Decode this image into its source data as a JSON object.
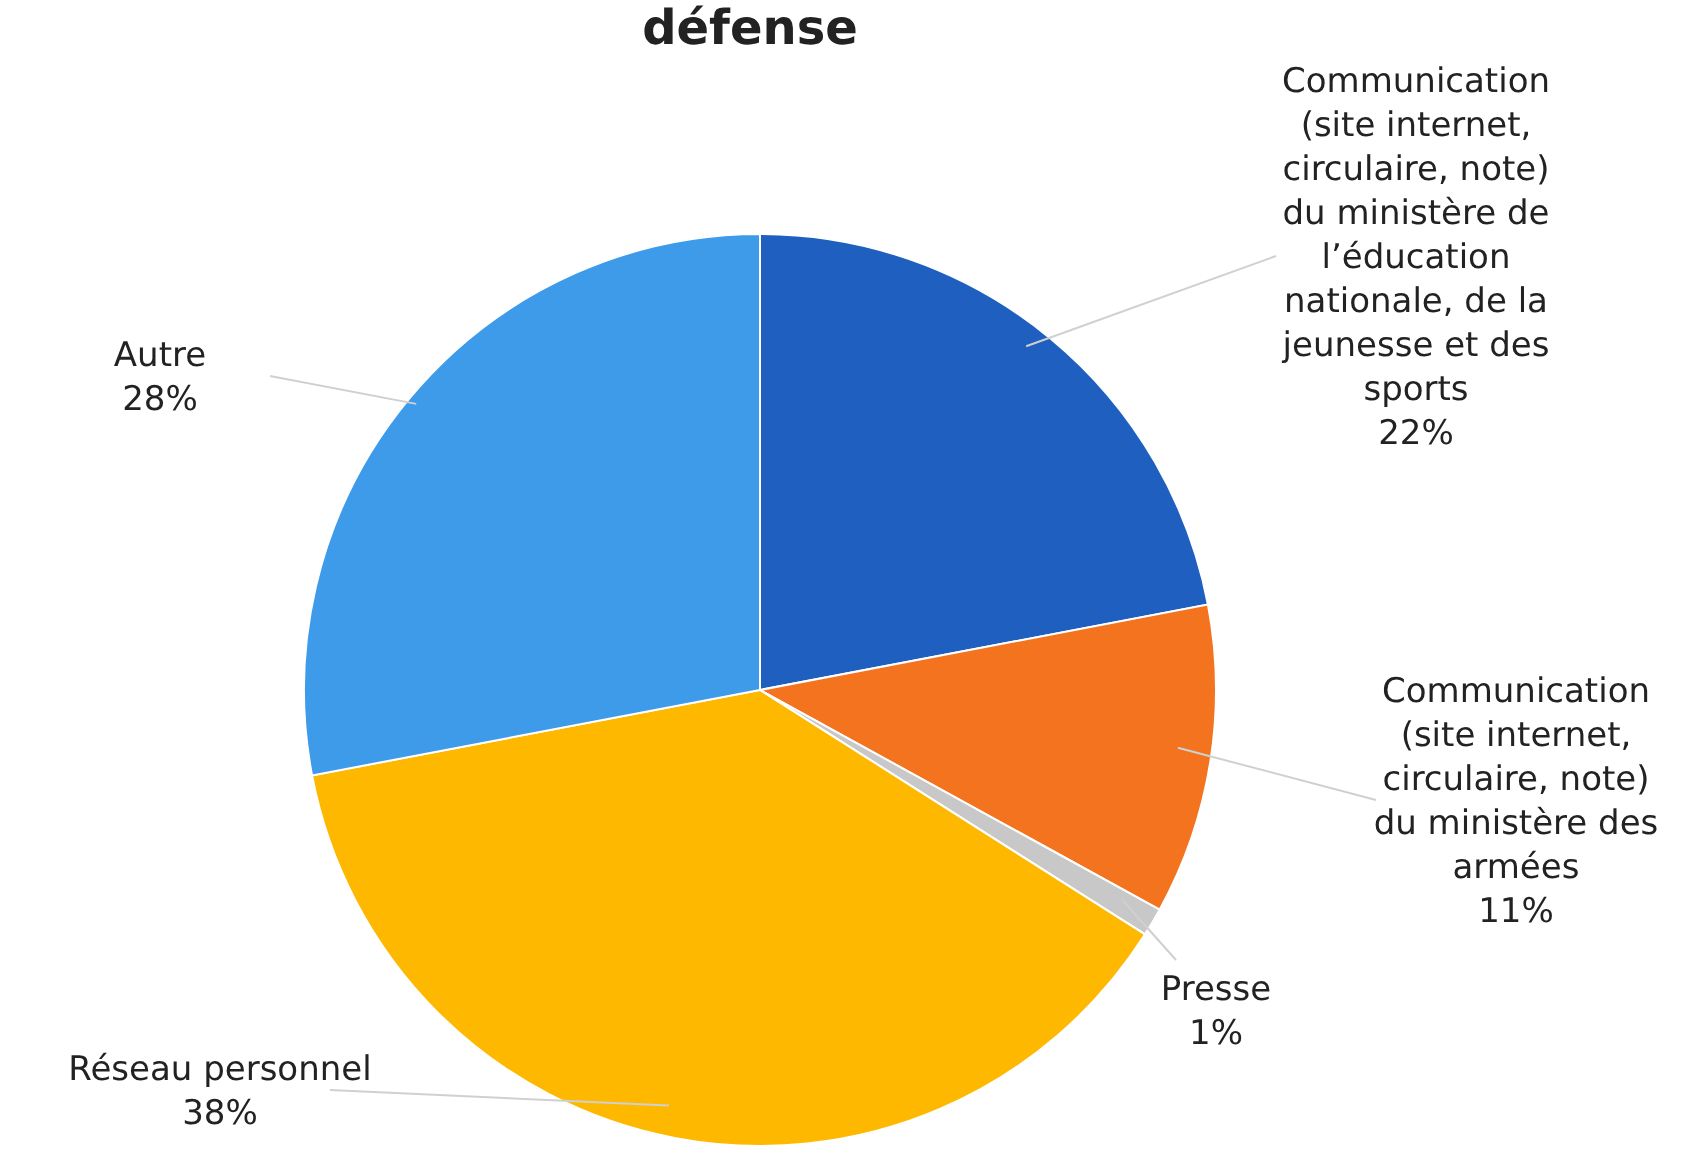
{
  "chart_data": {
    "type": "pie",
    "title": "défense",
    "categories": [
      "Communication (site internet, circulaire, note) du ministère de l’éducation nationale, de la jeunesse et des sports",
      "Communication (site internet, circulaire, note) du ministère des armées",
      "Presse",
      "Réseau personnel",
      "Autre"
    ],
    "values": [
      22,
      11,
      1,
      38,
      28
    ],
    "value_labels": [
      "22%",
      "11%",
      "1%",
      "38%",
      "28%"
    ],
    "colors": [
      "#1f5fbf",
      "#f4731f",
      "#c8c8c8",
      "#ffb800",
      "#3d9be9"
    ],
    "legend": false
  }
}
